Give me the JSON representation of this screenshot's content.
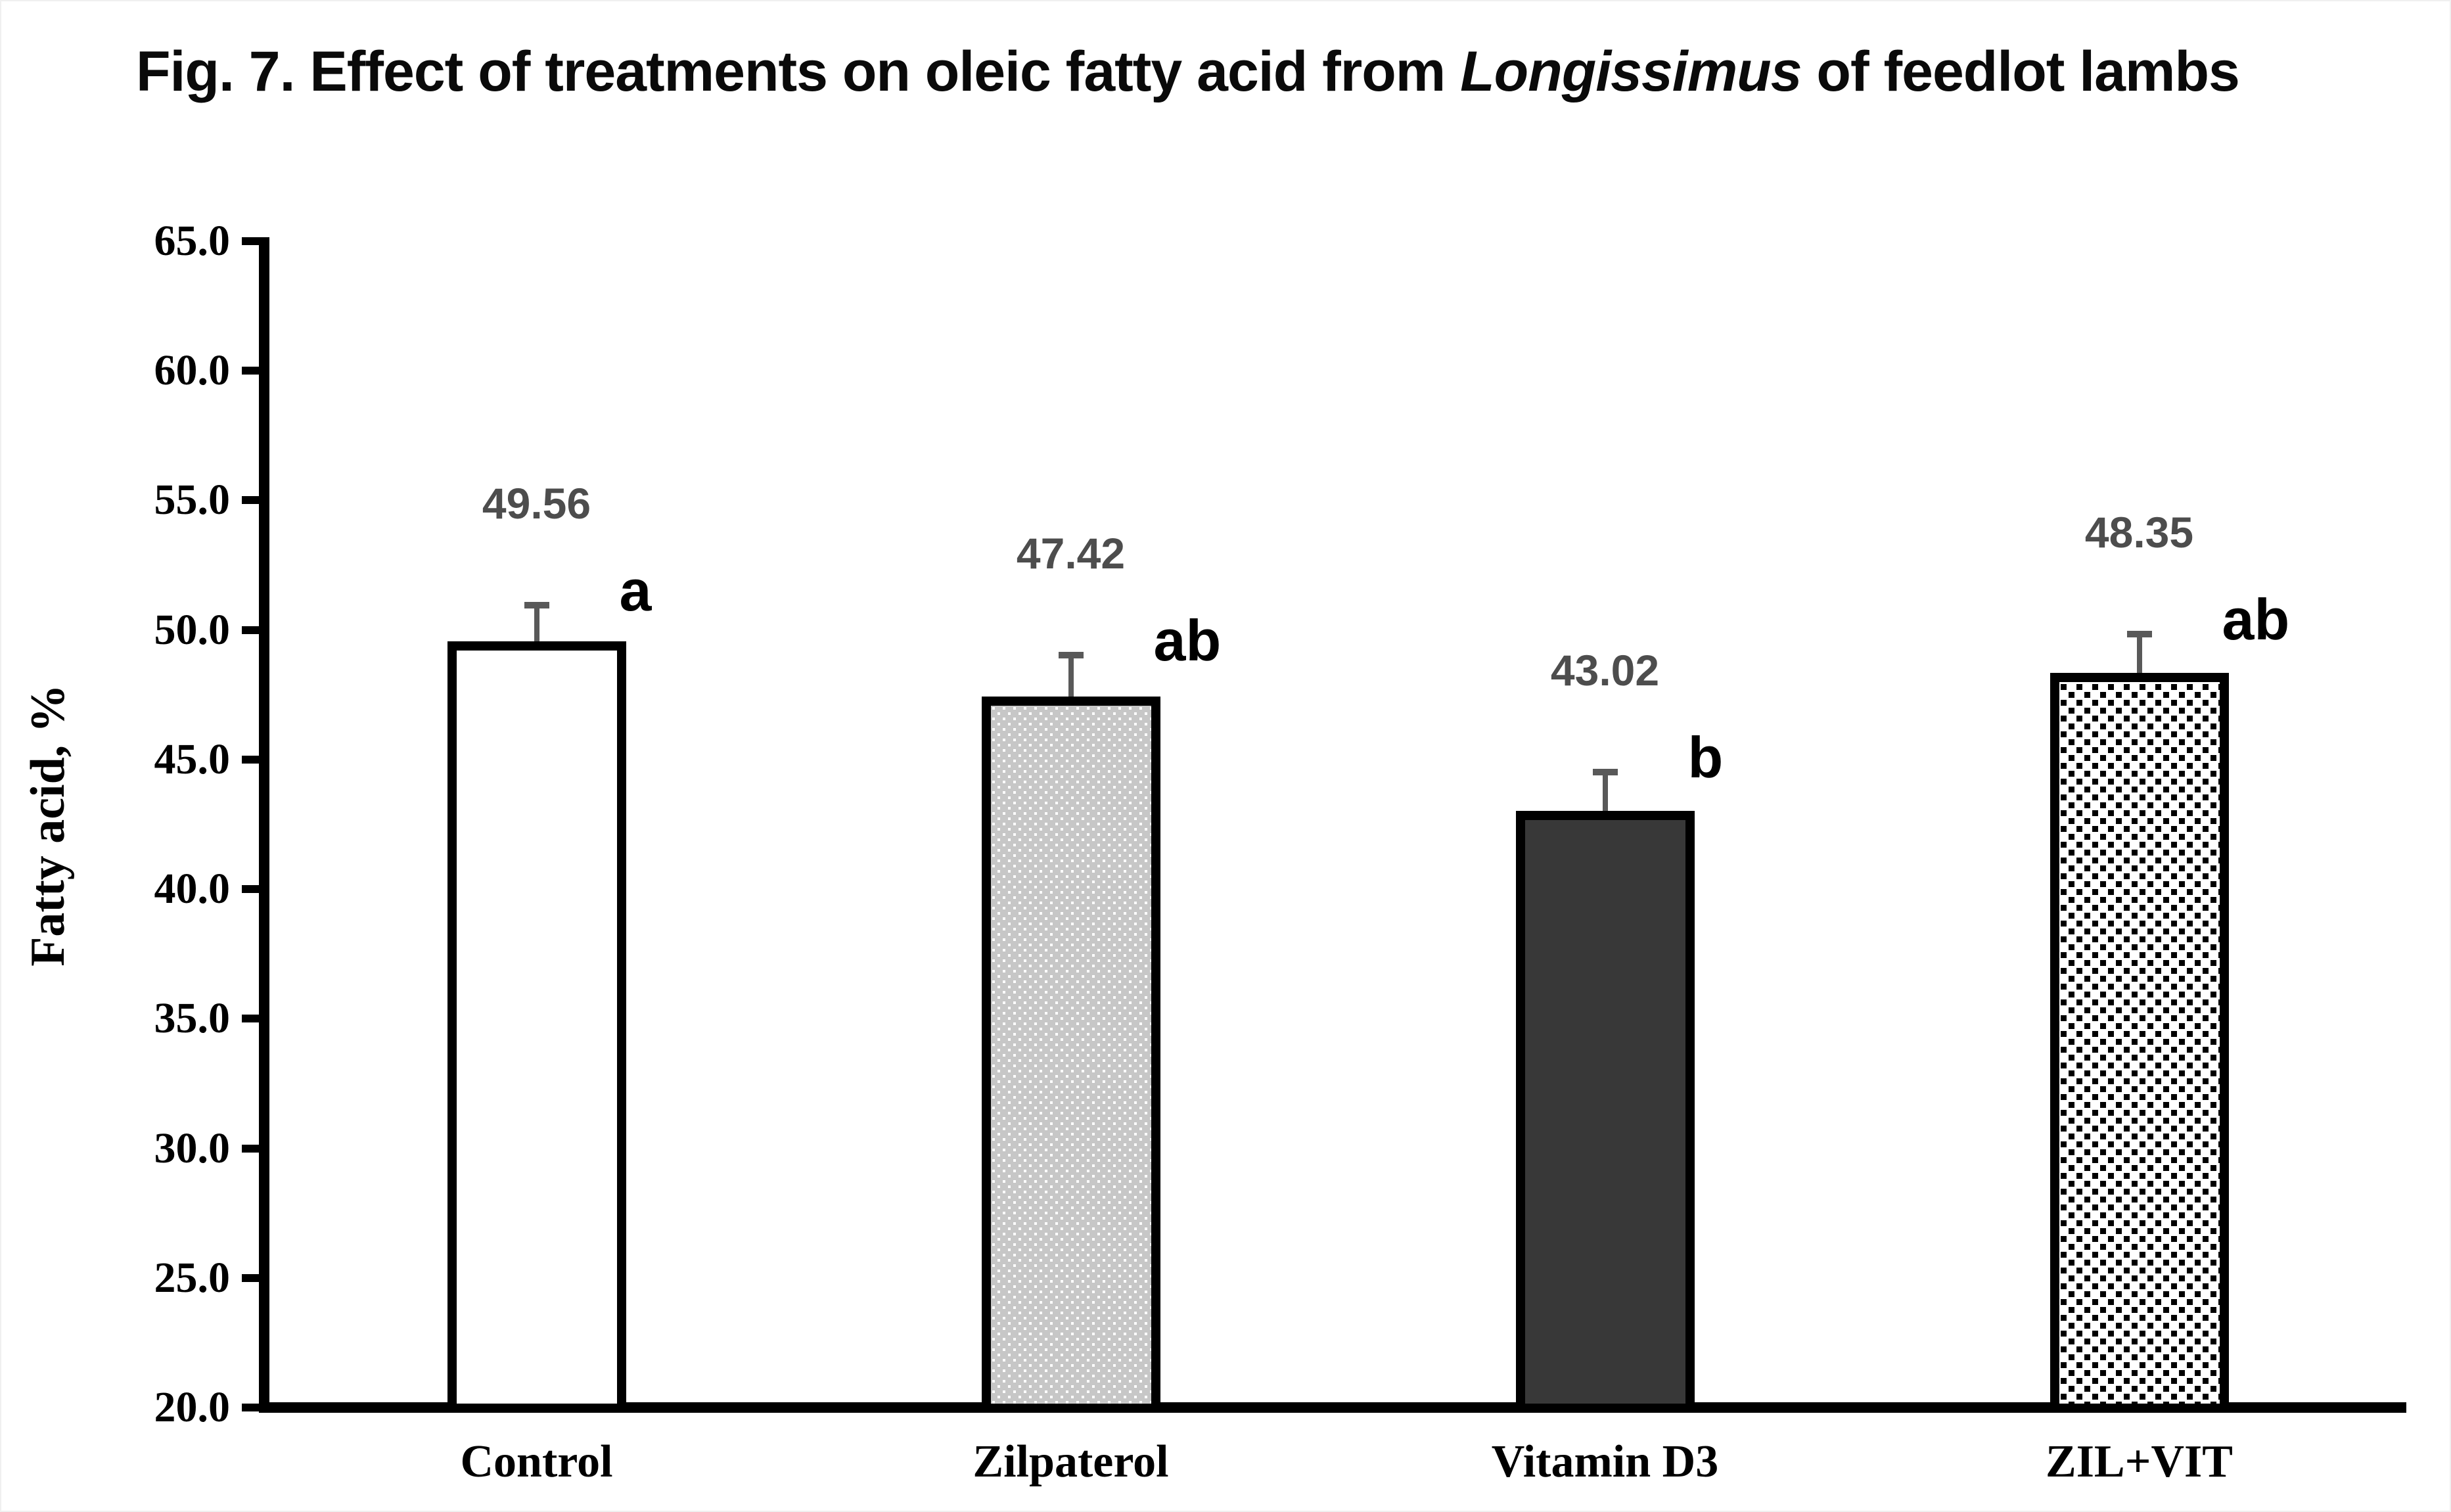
{
  "figure_title": {
    "prefix": "Fig. 7. Effect of treatments on oleic fatty acid from ",
    "italic": "Longissimus",
    "suffix": " of feedlot lambs"
  },
  "chart_data": {
    "type": "bar",
    "title": "Fig. 7. Effect of treatments on oleic fatty acid from Longissimus of feedlot lambs",
    "xlabel": "",
    "ylabel": "Fatty acid, %",
    "ylim": [
      20.0,
      65.0
    ],
    "ytick_step": 5.0,
    "ytick_labels": [
      "65.0",
      "60.0",
      "55.0",
      "50.0",
      "45.0",
      "40.0",
      "35.0",
      "30.0",
      "25.0",
      "20.0"
    ],
    "categories": [
      "Control",
      "Zilpaterol",
      "Vitamin D3",
      "ZIL+VIT"
    ],
    "values": [
      49.56,
      47.42,
      43.02,
      48.35
    ],
    "value_labels": [
      "49.56",
      "47.42",
      "43.02",
      "48.35"
    ],
    "error_bars": [
      1.4,
      1.6,
      1.5,
      1.5
    ],
    "sig_letters": [
      "a",
      "ab",
      "b",
      "ab"
    ],
    "bar_styles": [
      "white",
      "gray-fine-dots",
      "dark-gray",
      "black-dot-grid"
    ],
    "grid": false,
    "legend": false,
    "colors": {
      "axis": "#000000",
      "bar_border": "#000000",
      "bar_white": "#ffffff",
      "bar_light_gray": "#c7c7c7",
      "bar_dark_gray": "#383838",
      "error_bar": "#595959",
      "value_label": "#4d4d4d",
      "sig_letter": "#000000"
    }
  }
}
